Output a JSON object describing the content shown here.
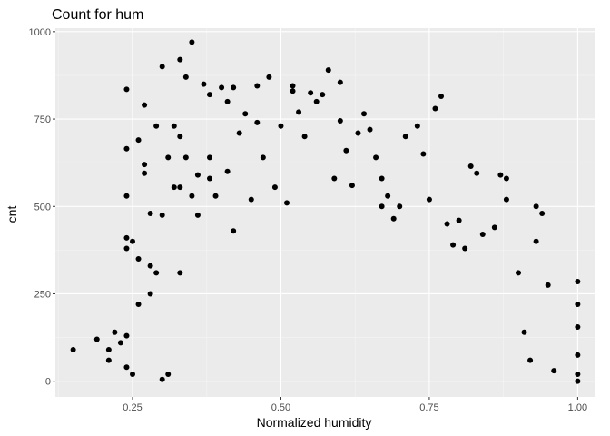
{
  "chart_data": {
    "type": "scatter",
    "title": "Count for hum",
    "xlabel": "Normalized humidity",
    "ylabel": "cnt",
    "xlim": [
      0.12,
      1.03
    ],
    "ylim": [
      -45,
      1010
    ],
    "x_ticks": [
      0.25,
      0.5,
      0.75,
      1.0
    ],
    "x_tick_labels": [
      "0.25",
      "0.50",
      "0.75",
      "1.00"
    ],
    "y_ticks": [
      0,
      250,
      500,
      750,
      1000
    ],
    "y_tick_labels": [
      "0",
      "250",
      "500",
      "750",
      "1000"
    ],
    "grid": true,
    "legend": "none",
    "colors": {
      "panel": "#ebebeb",
      "grid_major": "#ffffff",
      "grid_minor": "#f5f5f5",
      "point": "#000000"
    },
    "series": [
      {
        "values": [
          [
            0.15,
            90
          ],
          [
            0.19,
            120
          ],
          [
            0.21,
            90
          ],
          [
            0.21,
            60
          ],
          [
            0.22,
            140
          ],
          [
            0.23,
            110
          ],
          [
            0.24,
            835
          ],
          [
            0.24,
            665
          ],
          [
            0.24,
            530
          ],
          [
            0.24,
            410
          ],
          [
            0.24,
            380
          ],
          [
            0.24,
            130
          ],
          [
            0.24,
            40
          ],
          [
            0.25,
            20
          ],
          [
            0.25,
            400
          ],
          [
            0.26,
            690
          ],
          [
            0.26,
            350
          ],
          [
            0.26,
            220
          ],
          [
            0.27,
            790
          ],
          [
            0.27,
            620
          ],
          [
            0.27,
            595
          ],
          [
            0.28,
            480
          ],
          [
            0.28,
            330
          ],
          [
            0.28,
            250
          ],
          [
            0.29,
            730
          ],
          [
            0.29,
            310
          ],
          [
            0.3,
            900
          ],
          [
            0.3,
            475
          ],
          [
            0.3,
            5
          ],
          [
            0.31,
            20
          ],
          [
            0.31,
            640
          ],
          [
            0.32,
            555
          ],
          [
            0.32,
            730
          ],
          [
            0.33,
            555
          ],
          [
            0.33,
            920
          ],
          [
            0.33,
            700
          ],
          [
            0.33,
            310
          ],
          [
            0.34,
            870
          ],
          [
            0.34,
            640
          ],
          [
            0.35,
            970
          ],
          [
            0.35,
            530
          ],
          [
            0.36,
            475
          ],
          [
            0.36,
            590
          ],
          [
            0.37,
            850
          ],
          [
            0.38,
            820
          ],
          [
            0.38,
            640
          ],
          [
            0.38,
            580
          ],
          [
            0.39,
            530
          ],
          [
            0.4,
            840
          ],
          [
            0.41,
            800
          ],
          [
            0.41,
            600
          ],
          [
            0.42,
            840
          ],
          [
            0.42,
            430
          ],
          [
            0.43,
            710
          ],
          [
            0.44,
            765
          ],
          [
            0.45,
            520
          ],
          [
            0.46,
            740
          ],
          [
            0.46,
            845
          ],
          [
            0.47,
            640
          ],
          [
            0.48,
            870
          ],
          [
            0.49,
            555
          ],
          [
            0.5,
            730
          ],
          [
            0.51,
            510
          ],
          [
            0.52,
            845
          ],
          [
            0.52,
            830
          ],
          [
            0.53,
            770
          ],
          [
            0.54,
            700
          ],
          [
            0.55,
            825
          ],
          [
            0.56,
            800
          ],
          [
            0.57,
            820
          ],
          [
            0.58,
            890
          ],
          [
            0.59,
            580
          ],
          [
            0.6,
            855
          ],
          [
            0.6,
            745
          ],
          [
            0.61,
            660
          ],
          [
            0.62,
            560
          ],
          [
            0.63,
            710
          ],
          [
            0.64,
            765
          ],
          [
            0.65,
            720
          ],
          [
            0.66,
            640
          ],
          [
            0.67,
            580
          ],
          [
            0.67,
            500
          ],
          [
            0.68,
            530
          ],
          [
            0.69,
            465
          ],
          [
            0.7,
            500
          ],
          [
            0.71,
            700
          ],
          [
            0.73,
            730
          ],
          [
            0.74,
            650
          ],
          [
            0.75,
            520
          ],
          [
            0.76,
            780
          ],
          [
            0.77,
            815
          ],
          [
            0.78,
            450
          ],
          [
            0.79,
            390
          ],
          [
            0.8,
            460
          ],
          [
            0.81,
            380
          ],
          [
            0.82,
            615
          ],
          [
            0.83,
            595
          ],
          [
            0.84,
            420
          ],
          [
            0.86,
            440
          ],
          [
            0.87,
            590
          ],
          [
            0.88,
            580
          ],
          [
            0.88,
            520
          ],
          [
            0.9,
            310
          ],
          [
            0.91,
            140
          ],
          [
            0.92,
            60
          ],
          [
            0.93,
            500
          ],
          [
            0.93,
            400
          ],
          [
            0.94,
            480
          ],
          [
            0.95,
            275
          ],
          [
            0.96,
            30
          ],
          [
            1.0,
            285
          ],
          [
            1.0,
            220
          ],
          [
            1.0,
            155
          ],
          [
            1.0,
            75
          ],
          [
            1.0,
            20
          ],
          [
            1.0,
            0
          ]
        ]
      }
    ]
  }
}
